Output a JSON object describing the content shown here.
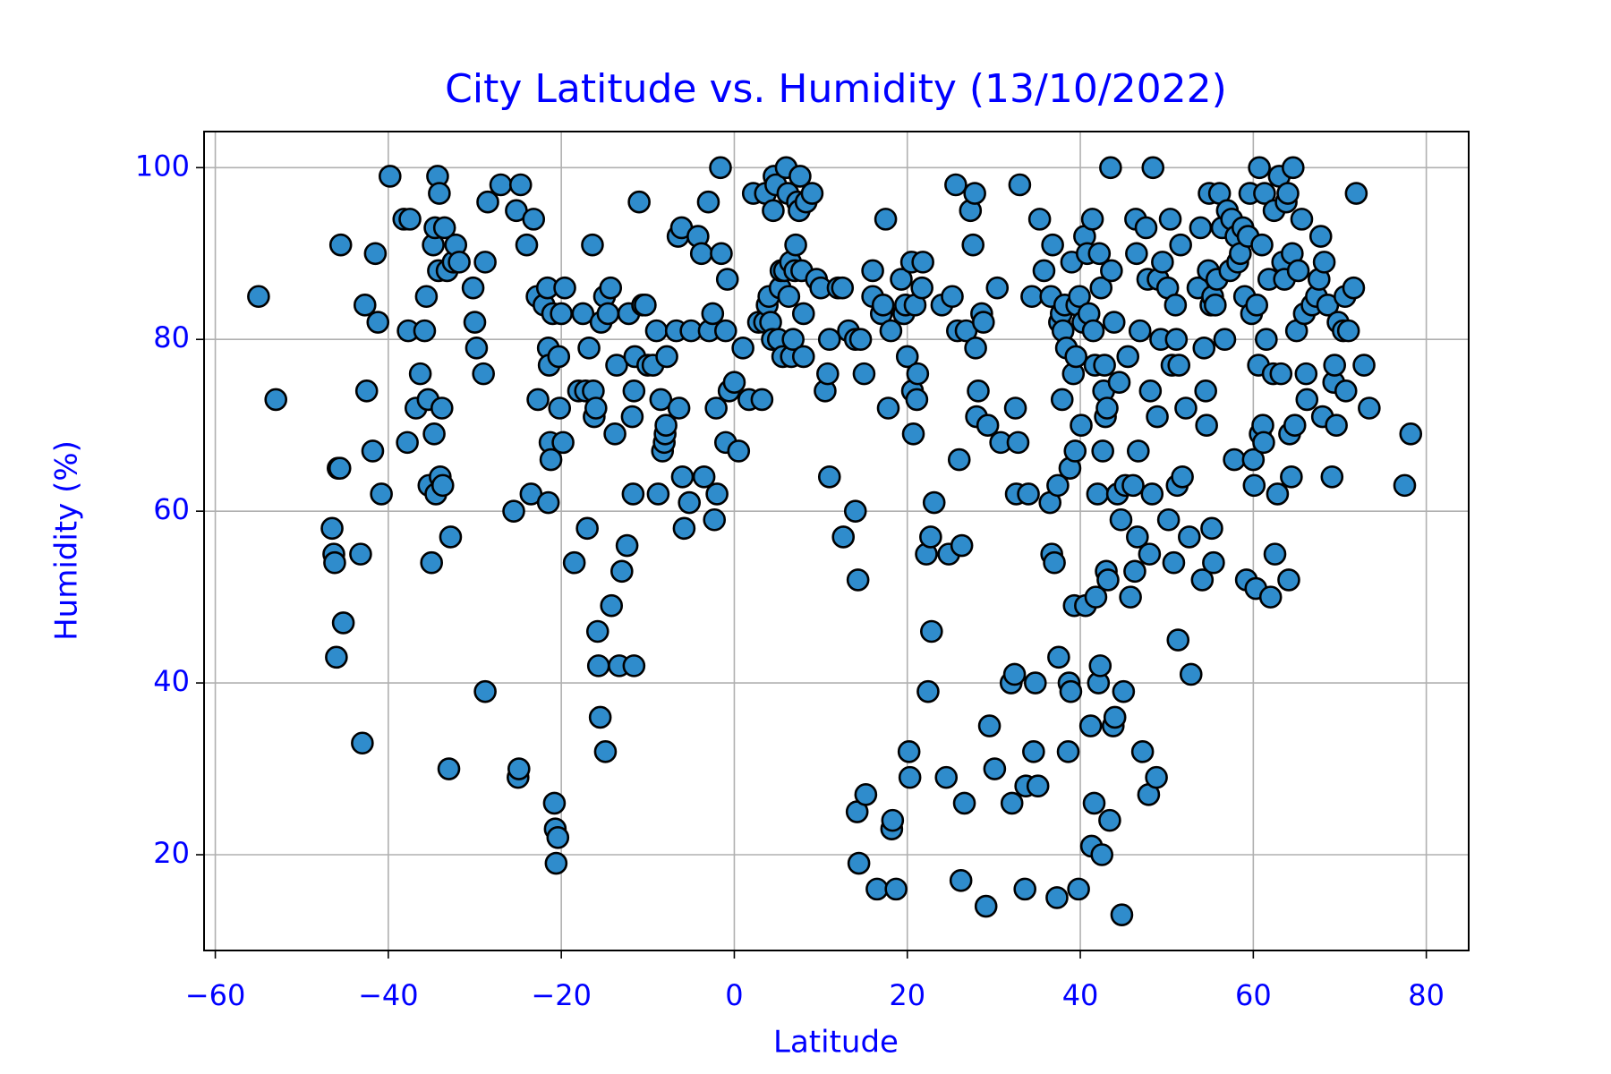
{
  "chart_data": {
    "type": "scatter",
    "title": "City Latitude vs. Humidity (13/10/2022)",
    "x_label": "Latitude",
    "y_label": "Humidity (%)",
    "color": "#2f8ccc",
    "edgecolor": "#000000",
    "grid": true,
    "xlim": [
      -61.3,
      84.9
    ],
    "ylim": [
      8.85,
      104.2
    ],
    "xticks": [
      {
        "value": -60,
        "label": "−60"
      },
      {
        "value": -40,
        "label": "−40"
      },
      {
        "value": -20,
        "label": "−20"
      },
      0,
      20,
      40,
      60,
      80
    ],
    "yticks": [
      20,
      40,
      60,
      80,
      100
    ],
    "x": [
      -55,
      -53,
      -46.5,
      -46.3,
      -46.2,
      -46,
      -45.8,
      -45.6,
      -45.5,
      -45.2,
      -43.2,
      -43,
      -42.7,
      -42.5,
      -41.8,
      -41.5,
      -41.2,
      -40.8,
      -39.8,
      -38.2,
      -37.8,
      -37.7,
      -37.5,
      -36.8,
      -36.3,
      -35.8,
      -35.6,
      -35.4,
      -35.3,
      -35,
      -34.8,
      -34.7,
      -34.6,
      -34.5,
      -34.3,
      -34.2,
      -34.1,
      -34,
      -33.8,
      -33.7,
      -33.5,
      -33.2,
      -33,
      -32.8,
      -32.5,
      -32.2,
      -31.8,
      -30.2,
      -30,
      -29.8,
      -29,
      -28.8,
      -28.5,
      -28.8,
      -27,
      -25.5,
      -25.2,
      -25,
      -24.9,
      -24.7,
      -24,
      -23.2,
      -23.5,
      -22.8,
      -22.7,
      -22,
      -21.6,
      -21.5,
      -21.4,
      -21.3,
      -21.2,
      -21.5,
      -21,
      -20.8,
      -20.7,
      -20.6,
      -20.4,
      -20.3,
      -20.2,
      -20,
      -19.8,
      -19.6,
      -18.5,
      -18,
      -17.5,
      -17.2,
      -17,
      -16.8,
      -16.4,
      -16.3,
      -16.2,
      -16,
      -15.8,
      -15.7,
      -15.5,
      -15.4,
      -15,
      -14.9,
      -14.6,
      -14.3,
      -14.2,
      -13.8,
      -13.6,
      -13.3,
      -13,
      -12.2,
      -12.4,
      -11.8,
      -11.6,
      -11.5,
      -11.7,
      -11.6,
      -11,
      -10.6,
      -10.3,
      -10,
      -9.4,
      -9,
      -8.8,
      -8.5,
      -8.3,
      -8.1,
      -8,
      -7.9,
      -7.8,
      -6.7,
      -6.4,
      -6.5,
      -6.1,
      -6,
      -5.8,
      -5.2,
      -5,
      -4.2,
      -3.8,
      -3.5,
      -3,
      -2.9,
      -2.5,
      -2.3,
      -2.1,
      -2,
      -1.6,
      -1.5,
      -1,
      -1,
      -0.8,
      -0.6,
      0,
      0.5,
      1,
      1.7,
      2.2,
      2.8,
      3.2,
      3.5,
      3.6,
      3.8,
      4,
      4.2,
      4.4,
      4.5,
      4.6,
      4.8,
      5.1,
      5.3,
      5.4,
      5.6,
      5.8,
      6,
      6.2,
      6.3,
      6.5,
      6.6,
      6.8,
      7,
      7.1,
      7.3,
      7.5,
      7.6,
      7.8,
      8,
      8,
      8.3,
      9,
      9.5,
      10,
      10.5,
      10.8,
      11,
      11,
      12,
      12.5,
      12.6,
      13.2,
      14,
      14,
      14.2,
      14.3,
      14.4,
      14.6,
      15,
      15.2,
      16,
      16,
      16.5,
      17,
      17.2,
      17.5,
      17.8,
      18.1,
      18.2,
      18.3,
      18.7,
      19.3,
      19.6,
      19.8,
      20,
      20.2,
      20.3,
      20.5,
      20.6,
      20.7,
      20.9,
      21.1,
      21.2,
      21.7,
      21.8,
      22.2,
      22.4,
      22.7,
      22.8,
      23.1,
      24,
      24.5,
      24.8,
      25.2,
      25.6,
      25.8,
      26,
      26.2,
      26.3,
      26.6,
      26.8,
      27.3,
      27.6,
      27.8,
      27.9,
      28,
      28.2,
      28.6,
      28.8,
      29.1,
      29.3,
      29.5,
      30.1,
      30.4,
      30.8,
      32,
      32.1,
      32.4,
      32.5,
      32.6,
      32.8,
      33,
      33.6,
      33.7,
      34,
      34.4,
      34.6,
      34.8,
      35.1,
      35.3,
      35.8,
      36.5,
      36.6,
      36.7,
      36.8,
      37,
      37.3,
      37.4,
      37.5,
      37.6,
      37.8,
      37.9,
      38,
      38.2,
      38.4,
      38.6,
      38.7,
      38.8,
      38.9,
      39,
      39.2,
      39.3,
      39.4,
      39.5,
      39.6,
      39.8,
      39.9,
      40.1,
      40.3,
      40.5,
      40.6,
      40.8,
      41,
      41.2,
      41.3,
      41.4,
      41.5,
      41.6,
      41.7,
      41.8,
      42,
      42.1,
      42.2,
      42.3,
      42.4,
      42.5,
      42.6,
      42.7,
      42.8,
      42.9,
      43,
      43.1,
      43.2,
      43.4,
      43.5,
      43.6,
      43.8,
      43.9,
      44,
      44.3,
      44.5,
      44.7,
      44.8,
      45,
      45.2,
      45.5,
      45.8,
      46.1,
      46.3,
      46.4,
      46.5,
      46.6,
      46.7,
      46.9,
      47.2,
      47.6,
      47.8,
      47.9,
      48,
      48.1,
      48.3,
      48.4,
      48.8,
      48.9,
      49,
      49.3,
      49.5,
      50.1,
      50.2,
      50.4,
      50.6,
      50.8,
      51,
      51.1,
      51.2,
      51.3,
      51.4,
      51.6,
      51.8,
      52.2,
      52.6,
      52.8,
      53.6,
      53.9,
      54.1,
      54.3,
      54.5,
      54.6,
      54.8,
      54.9,
      55.1,
      55.2,
      55.3,
      55.4,
      55.6,
      55.8,
      56.1,
      56.4,
      56.7,
      57,
      57.3,
      57.5,
      57.8,
      58,
      58.2,
      58.5,
      58.8,
      59,
      59.2,
      59.4,
      59.6,
      59.8,
      60,
      60.1,
      60.3,
      60.4,
      60.6,
      60.7,
      60.8,
      61,
      61.1,
      61.2,
      61.3,
      61.5,
      61.8,
      62,
      62.3,
      62.4,
      62.5,
      62.8,
      63,
      63.2,
      63.4,
      63.6,
      63.8,
      64,
      64.1,
      64.2,
      64.4,
      64.5,
      64.6,
      64.8,
      65,
      65.2,
      65.6,
      65.9,
      66.1,
      66.2,
      66.8,
      67.3,
      67.6,
      67.8,
      68,
      68.2,
      68.6,
      69.1,
      69.3,
      69.4,
      69.6,
      69.8,
      70.4,
      70.6,
      70.7,
      71,
      71.6,
      71.9,
      72.8,
      73.4,
      77.5,
      78.2
    ],
    "values": [
      85,
      73,
      58,
      55,
      54,
      43,
      65,
      65,
      91,
      47,
      55,
      33,
      84,
      74,
      67,
      90,
      82,
      62,
      99,
      94,
      68,
      81,
      94,
      72,
      76,
      81,
      85,
      73,
      63,
      54,
      91,
      69,
      93,
      62,
      99,
      88,
      97,
      64,
      72,
      63,
      93,
      88,
      30,
      57,
      89,
      91,
      89,
      86,
      82,
      79,
      76,
      89,
      96,
      39,
      98,
      60,
      95,
      29,
      30,
      98,
      91,
      94,
      62,
      85,
      73,
      84,
      86,
      79,
      77,
      68,
      66,
      61,
      83,
      26,
      23,
      19,
      22,
      78,
      72,
      83,
      68,
      86,
      54,
      74,
      83,
      74,
      58,
      79,
      91,
      74,
      71,
      72,
      46,
      42,
      36,
      82,
      85,
      32,
      83,
      86,
      49,
      69,
      77,
      42,
      53,
      83,
      56,
      71,
      74,
      78,
      62,
      42,
      96,
      84,
      84,
      77,
      77,
      81,
      62,
      73,
      67,
      68,
      69,
      70,
      78,
      81,
      72,
      92,
      93,
      64,
      58,
      61,
      81,
      92,
      90,
      64,
      96,
      81,
      83,
      59,
      72,
      62,
      100,
      90,
      68,
      81,
      87,
      74,
      75,
      67,
      79,
      73,
      97,
      82,
      73,
      82,
      97,
      84,
      85,
      82,
      80,
      95,
      99,
      98,
      80,
      86,
      88,
      78,
      88,
      100,
      97,
      85,
      89,
      78,
      80,
      88,
      91,
      96,
      95,
      99,
      88,
      83,
      78,
      96,
      97,
      87,
      86,
      74,
      76,
      64,
      80,
      86,
      86,
      57,
      81,
      80,
      60,
      25,
      52,
      19,
      80,
      76,
      27,
      88,
      85,
      16,
      83,
      84,
      94,
      72,
      81,
      23,
      24,
      16,
      87,
      83,
      84,
      78,
      32,
      29,
      89,
      74,
      69,
      84,
      73,
      76,
      86,
      89,
      55,
      39,
      57,
      46,
      61,
      84,
      29,
      55,
      85,
      98,
      81,
      66,
      17,
      56,
      26,
      81,
      95,
      91,
      97,
      79,
      71,
      74,
      83,
      82,
      14,
      70,
      35,
      30,
      86,
      68,
      40,
      26,
      41,
      72,
      62,
      68,
      98,
      16,
      28,
      62,
      85,
      32,
      40,
      28,
      94,
      88,
      61,
      85,
      55,
      91,
      54,
      15,
      63,
      43,
      82,
      83,
      73,
      81,
      84,
      79,
      32,
      40,
      65,
      39,
      89,
      76,
      49,
      67,
      78,
      84,
      16,
      85,
      70,
      82,
      92,
      49,
      90,
      83,
      35,
      21,
      94,
      81,
      26,
      77,
      50,
      62,
      40,
      90,
      42,
      86,
      20,
      67,
      74,
      77,
      71,
      53,
      72,
      52,
      24,
      100,
      88,
      35,
      82,
      36,
      62,
      75,
      59,
      13,
      39,
      63,
      78,
      50,
      63,
      53,
      94,
      90,
      57,
      67,
      81,
      32,
      93,
      87,
      27,
      55,
      74,
      62,
      100,
      29,
      71,
      87,
      80,
      89,
      86,
      59,
      94,
      77,
      54,
      84,
      80,
      63,
      45,
      77,
      91,
      64,
      72,
      57,
      41,
      86,
      93,
      52,
      79,
      74,
      70,
      88,
      97,
      84,
      58,
      85,
      54,
      84,
      87,
      97,
      93,
      80,
      95,
      88,
      94,
      66,
      92,
      89,
      90,
      93,
      85,
      52,
      92,
      97,
      83,
      66,
      63,
      51,
      84,
      77,
      100,
      69,
      91,
      70,
      68,
      97,
      80,
      87,
      50,
      76,
      95,
      55,
      62,
      99,
      76,
      89,
      87,
      96,
      97,
      52,
      69,
      64,
      90,
      100,
      70,
      81,
      88,
      94,
      83,
      76,
      73,
      84,
      85,
      87,
      92,
      71,
      89,
      84,
      64,
      75,
      77,
      70,
      82,
      81,
      85,
      74,
      81,
      86,
      97,
      77,
      72,
      63,
      69
    ]
  }
}
